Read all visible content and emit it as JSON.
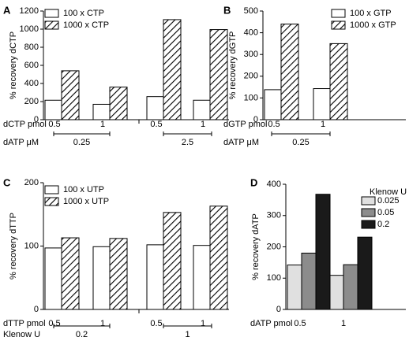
{
  "chart_data": [
    {
      "type": "bar",
      "panel": "A",
      "ylabel": "% recovery dCTP",
      "ylim": [
        0,
        1200
      ],
      "yticks": [
        0,
        200,
        400,
        600,
        800,
        1000,
        1200
      ],
      "series": [
        {
          "name": "100 x CTP",
          "fill": "white",
          "values": [
            215,
            170,
            255,
            215
          ]
        },
        {
          "name": "1000 x CTP",
          "fill": "hatch",
          "values": [
            540,
            360,
            1105,
            995
          ]
        }
      ],
      "legend_position": "top-left",
      "sub_rows": [
        {
          "label": "dCTP pmol",
          "values": [
            "0.5",
            "1",
            "0.5",
            "1"
          ]
        },
        {
          "label": "dATP μM",
          "values": [
            "0.25",
            "2.5"
          ]
        }
      ]
    },
    {
      "type": "bar",
      "panel": "B",
      "ylabel": "% recovery dGTP",
      "ylim": [
        0,
        500
      ],
      "yticks": [
        0,
        100,
        200,
        300,
        400,
        500
      ],
      "series": [
        {
          "name": "100 x GTP",
          "fill": "white",
          "values": [
            138,
            143
          ]
        },
        {
          "name": "1000 x GTP",
          "fill": "hatch",
          "values": [
            440,
            350
          ]
        }
      ],
      "legend_position": "top-right",
      "sub_rows": [
        {
          "label": "dGTP pmol",
          "values": [
            "0.5",
            "1"
          ]
        },
        {
          "label": "dATP μM",
          "values": [
            "0.25"
          ]
        }
      ]
    },
    {
      "type": "bar",
      "panel": "C",
      "ylabel": "% recovery dTTP",
      "ylim": [
        0,
        200
      ],
      "yticks": [
        0,
        100,
        200
      ],
      "series": [
        {
          "name": "100 x UTP",
          "fill": "white",
          "values": [
            97,
            99,
            102,
            101
          ]
        },
        {
          "name": "1000 x UTP",
          "fill": "hatch",
          "values": [
            113,
            112,
            153,
            163
          ]
        }
      ],
      "legend_position": "top-left",
      "sub_rows": [
        {
          "label": "dTTP pmol",
          "values": [
            "0.5",
            "1",
            "0.5",
            "1"
          ]
        },
        {
          "label": "Klenow U",
          "values": [
            "0.2",
            "1"
          ]
        }
      ]
    },
    {
      "type": "bar",
      "panel": "D",
      "ylabel": "% recovery dATP",
      "ylim": [
        0,
        400
      ],
      "yticks": [
        0,
        100,
        200,
        300,
        400
      ],
      "legend_title": "Klenow U",
      "series": [
        {
          "name": "0.025",
          "color": "#e0e0e0",
          "values": [
            142,
            109
          ]
        },
        {
          "name": "0.05",
          "color": "#8c8c8c",
          "values": [
            180,
            143
          ]
        },
        {
          "name": "0.2",
          "color": "#1a1a1a",
          "values": [
            368,
            231
          ]
        }
      ],
      "legend_position": "top-right",
      "sub_rows": [
        {
          "label": "dATP pmol",
          "values": [
            "0.5",
            "1"
          ]
        }
      ]
    }
  ]
}
